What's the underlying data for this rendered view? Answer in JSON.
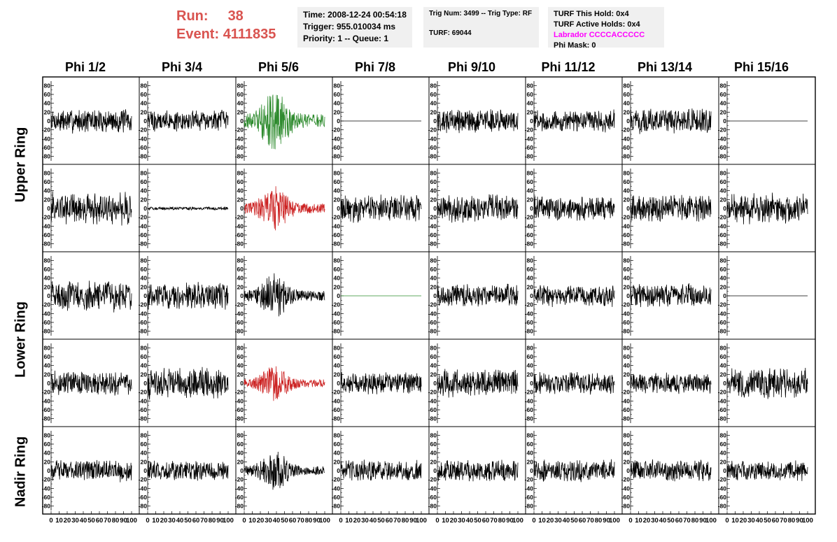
{
  "header": {
    "run_label": "Run:",
    "run_value": "38",
    "event_label": "Event:",
    "event_value": "4111835",
    "time": "Time: 2008-12-24 00:54:18",
    "trigger": "Trigger: 955.010034 ms",
    "priority": "Priority: 1 -- Queue: 1",
    "trig_num": "Trig Num: 3499 -- Trig Type: RF",
    "turf": "TURF: 69044",
    "turf_hold": "TURF This Hold: 0x4",
    "turf_active": "TURF Active Holds: 0x4",
    "labrador": "Labrador CCCCACCCCC",
    "phi_mask": "Phi Mask: 0"
  },
  "columns": [
    "Phi 1/2",
    "Phi 3/4",
    "Phi 5/6",
    "Phi 7/8",
    "Phi 9/10",
    "Phi 11/12",
    "Phi 13/14",
    "Phi 15/16"
  ],
  "row_groups": [
    "Upper Ring",
    "Lower Ring",
    "Nadir Ring"
  ],
  "chart_data": {
    "type": "line",
    "ylim": [
      -90,
      90
    ],
    "xlim": [
      0,
      100
    ],
    "y_ticks": [
      "80",
      "60",
      "40",
      "20",
      "0",
      "-20",
      "-40",
      "-60",
      "-80"
    ],
    "x_ticks": [
      "0",
      "10",
      "20",
      "30",
      "40",
      "50",
      "60",
      "70",
      "80",
      "90",
      "100"
    ],
    "highlight_colors": {
      "normal": "#000000",
      "green": "#2e8b2e",
      "red": "#cc2222"
    },
    "panels": [
      [
        {
          "style": "noise",
          "amp": 22,
          "color": "normal"
        },
        {
          "style": "noise",
          "amp": 20,
          "color": "normal"
        },
        {
          "style": "burst",
          "amp": 60,
          "color": "green"
        },
        {
          "style": "flat",
          "amp": 0,
          "color": "normal"
        },
        {
          "style": "noise",
          "amp": 22,
          "color": "normal"
        },
        {
          "style": "noise",
          "amp": 20,
          "color": "normal"
        },
        {
          "style": "noise",
          "amp": 22,
          "color": "normal"
        },
        {
          "style": "flat",
          "amp": 0,
          "color": "normal"
        }
      ],
      [
        {
          "style": "noise",
          "amp": 30,
          "color": "normal"
        },
        {
          "style": "noise",
          "amp": 3,
          "color": "normal"
        },
        {
          "style": "burst",
          "amp": 45,
          "color": "red"
        },
        {
          "style": "noise",
          "amp": 25,
          "color": "normal"
        },
        {
          "style": "noise",
          "amp": 25,
          "color": "normal"
        },
        {
          "style": "noise",
          "amp": 22,
          "color": "normal"
        },
        {
          "style": "noise",
          "amp": 25,
          "color": "normal"
        },
        {
          "style": "noise",
          "amp": 28,
          "color": "normal"
        }
      ],
      [
        {
          "style": "noise",
          "amp": 28,
          "color": "normal"
        },
        {
          "style": "noise",
          "amp": 24,
          "color": "normal"
        },
        {
          "style": "burst",
          "amp": 45,
          "color": "normal"
        },
        {
          "style": "flat",
          "amp": 0,
          "color": "green"
        },
        {
          "style": "noise",
          "amp": 22,
          "color": "normal"
        },
        {
          "style": "noise",
          "amp": 20,
          "color": "normal"
        },
        {
          "style": "noise",
          "amp": 22,
          "color": "normal"
        },
        {
          "style": "flat",
          "amp": 0,
          "color": "normal"
        }
      ],
      [
        {
          "style": "noise",
          "amp": 22,
          "color": "normal"
        },
        {
          "style": "noise",
          "amp": 28,
          "color": "normal"
        },
        {
          "style": "burst",
          "amp": 35,
          "color": "red"
        },
        {
          "style": "noise",
          "amp": 20,
          "color": "normal"
        },
        {
          "style": "noise",
          "amp": 25,
          "color": "normal"
        },
        {
          "style": "noise",
          "amp": 20,
          "color": "normal"
        },
        {
          "style": "noise",
          "amp": 20,
          "color": "normal"
        },
        {
          "style": "noise",
          "amp": 28,
          "color": "normal"
        }
      ],
      [
        {
          "style": "noise",
          "amp": 20,
          "color": "normal"
        },
        {
          "style": "noise",
          "amp": 18,
          "color": "normal"
        },
        {
          "style": "burst",
          "amp": 40,
          "color": "normal"
        },
        {
          "style": "noise",
          "amp": 20,
          "color": "normal"
        },
        {
          "style": "noise",
          "amp": 20,
          "color": "normal"
        },
        {
          "style": "noise",
          "amp": 20,
          "color": "normal"
        },
        {
          "style": "noise",
          "amp": 20,
          "color": "normal"
        },
        {
          "style": "noise",
          "amp": 18,
          "color": "normal"
        }
      ]
    ]
  }
}
